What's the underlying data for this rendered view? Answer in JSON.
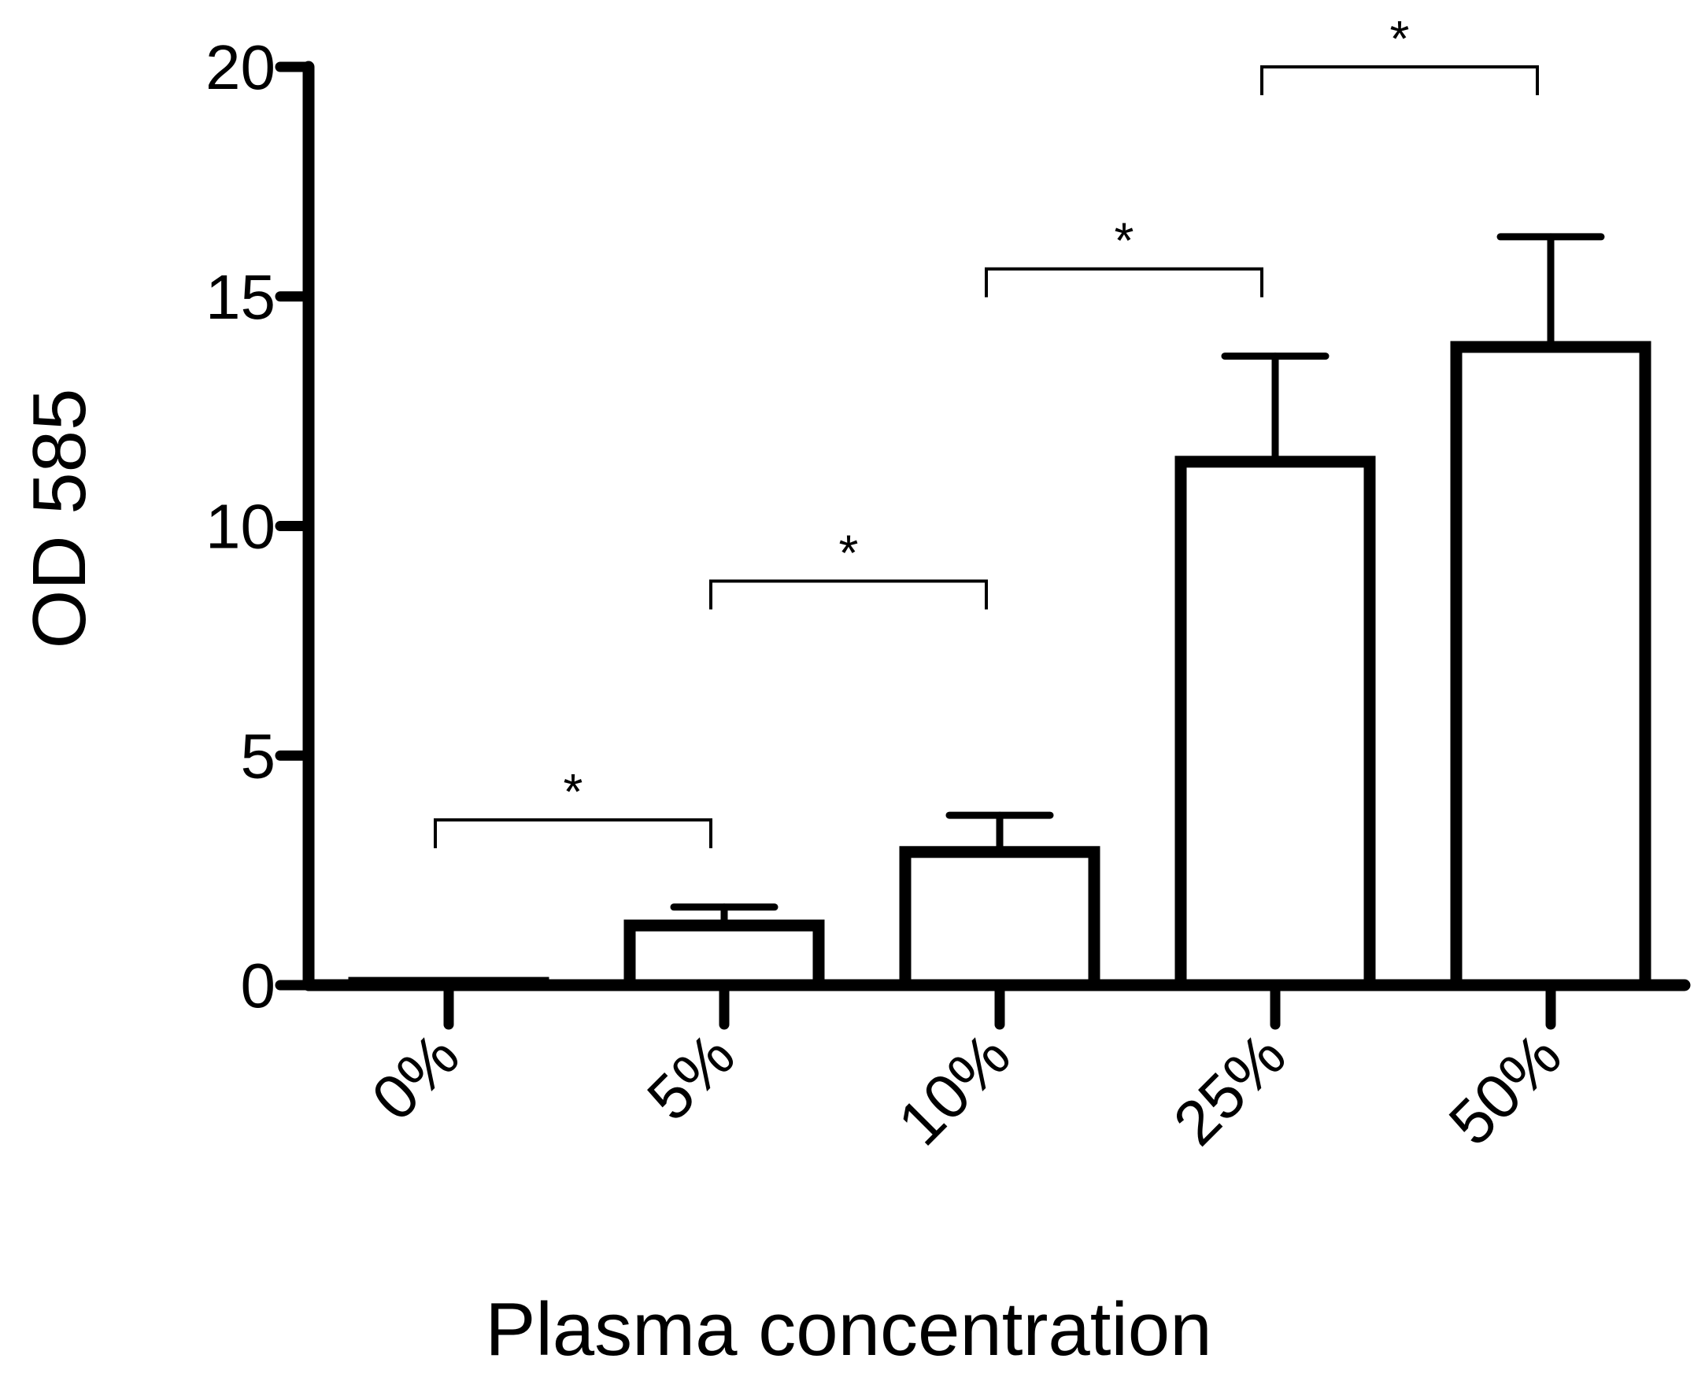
{
  "chart_data": {
    "type": "bar",
    "title": "",
    "xlabel": "Plasma concentration",
    "ylabel": "OD 585",
    "categories": [
      "0%",
      "5%",
      "10%",
      "25%",
      "50%"
    ],
    "values": [
      0.05,
      1.3,
      2.9,
      11.4,
      13.9
    ],
    "errors": [
      0,
      0.4,
      0.8,
      2.3,
      2.4
    ],
    "ylim": [
      0,
      20
    ],
    "yticks": [
      0,
      5,
      10,
      15,
      20
    ],
    "ytick_labels": [
      "0",
      "5",
      "10",
      "15",
      "20"
    ],
    "grid": false,
    "significance": [
      {
        "from": 0,
        "to": 1,
        "label": "*",
        "level": 3.6
      },
      {
        "from": 1,
        "to": 2,
        "label": "*",
        "level": 8.8
      },
      {
        "from": 2,
        "to": 3,
        "label": "*",
        "level": 15.6
      },
      {
        "from": 3,
        "to": 4,
        "label": "*",
        "level": 20
      }
    ]
  }
}
